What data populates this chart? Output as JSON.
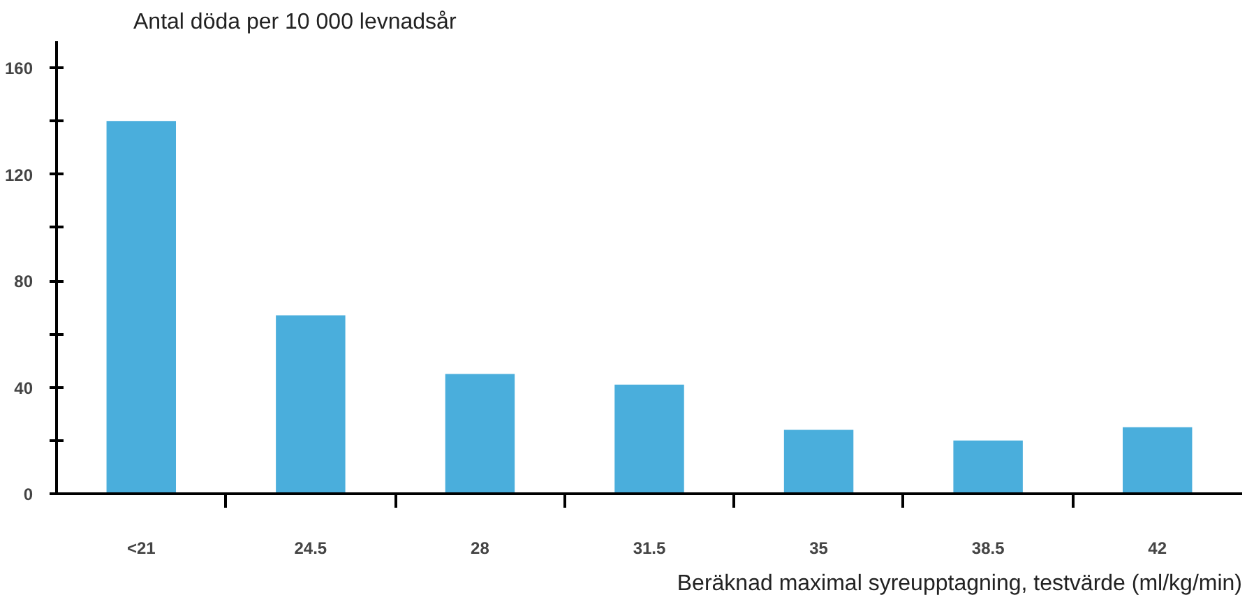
{
  "chart_data": {
    "type": "bar",
    "ylabel": "Antal döda per 10 000 levnadsår",
    "xlabel": "Beräknad maximal syreupptagning, testvärde (ml/kg/min)",
    "categories": [
      "<21",
      "24.5",
      "28",
      "31.5",
      "35",
      "38.5",
      "42"
    ],
    "values": [
      140,
      67,
      45,
      41,
      24,
      20,
      25
    ],
    "color": "#4aaedc",
    "ylim": [
      0,
      170
    ],
    "yticks": [
      0,
      {
        "value": 20,
        "label": null
      },
      40,
      {
        "value": 60,
        "label": null
      },
      80,
      {
        "value": 100,
        "label": null
      },
      120,
      {
        "value": 140,
        "label": null
      },
      160
    ],
    "grid": false
  }
}
